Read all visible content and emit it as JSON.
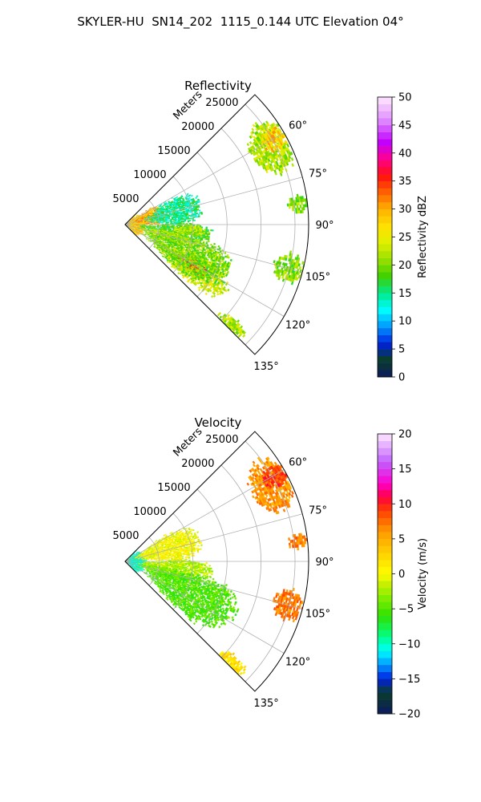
{
  "figure": {
    "title": "SKYLER-HU  SN14_202  1115_0.144 UTC Elevation 04°"
  },
  "chart_data": [
    {
      "type": "heatmap",
      "subtype": "polar-sector",
      "title": "Reflectivity",
      "radial_axis_label": "Meters",
      "radial_range": [
        0,
        27000
      ],
      "radial_ticks": [
        5000,
        10000,
        15000,
        20000,
        25000
      ],
      "radial_tick_labels": [
        "5000",
        "10000",
        "15000",
        "20000",
        "25000"
      ],
      "azimuth_range_deg": [
        45,
        135
      ],
      "azimuth_ticks_deg": [
        60,
        75,
        90,
        105,
        120,
        135
      ],
      "azimuth_tick_labels": [
        "60°",
        "75°",
        "90°",
        "105°",
        "120°",
        "135°"
      ],
      "grid": true,
      "colorbar": {
        "label": "Reflectivity dBZ",
        "range": [
          0,
          50
        ],
        "ticks": [
          0,
          5,
          10,
          15,
          20,
          25,
          30,
          35,
          40,
          45,
          50
        ],
        "tick_labels": [
          "0",
          "5",
          "10",
          "15",
          "20",
          "25",
          "30",
          "35",
          "40",
          "45",
          "50"
        ],
        "placement": "right"
      },
      "echo_regions": [
        {
          "az": [
            46,
            137
          ],
          "r": [
            0,
            3000
          ],
          "value": 28
        },
        {
          "az": [
            56,
            90
          ],
          "r": [
            1500,
            6000
          ],
          "value": 30
        },
        {
          "az": [
            60,
            90
          ],
          "r": [
            3000,
            11500
          ],
          "value": 15
        },
        {
          "az": [
            88,
            104
          ],
          "r": [
            2000,
            13000
          ],
          "value": 18
        },
        {
          "az": [
            90,
            100
          ],
          "r": [
            7000,
            12000
          ],
          "value": 22
        },
        {
          "az": [
            98,
            112
          ],
          "r": [
            2000,
            9500
          ],
          "value": 22
        },
        {
          "az": [
            112,
            132
          ],
          "r": [
            5000,
            18000
          ],
          "value": 24
        },
        {
          "az": [
            116,
            126
          ],
          "r": [
            9000,
            14000
          ],
          "value": 35
        },
        {
          "az": [
            100,
            130
          ],
          "r": [
            3000,
            17000
          ],
          "value": 20
        },
        {
          "az": [
            52,
            72
          ],
          "r": [
            21000,
            27000
          ],
          "value": 22
        },
        {
          "az": [
            56,
            64
          ],
          "r": [
            23000,
            27000
          ],
          "value": 28
        },
        {
          "az": [
            80,
            86
          ],
          "r": [
            24000,
            27000
          ],
          "value": 20
        },
        {
          "az": [
            99,
            110
          ],
          "r": [
            22500,
            27000
          ],
          "value": 20
        },
        {
          "az": [
            130,
            136
          ],
          "r": [
            19000,
            24000
          ],
          "value": 22
        }
      ]
    },
    {
      "type": "heatmap",
      "subtype": "polar-sector",
      "title": "Velocity",
      "radial_axis_label": "Meters",
      "radial_range": [
        0,
        27000
      ],
      "radial_ticks": [
        5000,
        10000,
        15000,
        20000,
        25000
      ],
      "radial_tick_labels": [
        "5000",
        "10000",
        "15000",
        "20000",
        "25000"
      ],
      "azimuth_range_deg": [
        45,
        135
      ],
      "azimuth_ticks_deg": [
        60,
        75,
        90,
        105,
        120,
        135
      ],
      "azimuth_tick_labels": [
        "60°",
        "75°",
        "90°",
        "105°",
        "120°",
        "135°"
      ],
      "grid": true,
      "colorbar": {
        "label": "Velocity (m/s)",
        "range": [
          -20,
          20
        ],
        "ticks": [
          -20,
          -15,
          -10,
          -5,
          0,
          5,
          10,
          15,
          20
        ],
        "tick_labels": [
          "−20",
          "−15",
          "−10",
          "−5",
          "0",
          "5",
          "10",
          "15",
          "20"
        ],
        "placement": "right"
      },
      "echo_regions": [
        {
          "az": [
            46,
            137
          ],
          "r": [
            0,
            3000
          ],
          "value": -10
        },
        {
          "az": [
            56,
            90
          ],
          "r": [
            1500,
            11500
          ],
          "value": 0
        },
        {
          "az": [
            88,
            104
          ],
          "r": [
            2000,
            13000
          ],
          "value": -2
        },
        {
          "az": [
            98,
            112
          ],
          "r": [
            2000,
            9500
          ],
          "value": -4
        },
        {
          "az": [
            100,
            132
          ],
          "r": [
            3000,
            18000
          ],
          "value": -5
        },
        {
          "az": [
            52,
            72
          ],
          "r": [
            21000,
            27000
          ],
          "value": 6
        },
        {
          "az": [
            56,
            64
          ],
          "r": [
            23000,
            27000
          ],
          "value": 9
        },
        {
          "az": [
            80,
            86
          ],
          "r": [
            24000,
            27000
          ],
          "value": 7
        },
        {
          "az": [
            99,
            110
          ],
          "r": [
            22500,
            27000
          ],
          "value": 7
        },
        {
          "az": [
            130,
            136
          ],
          "r": [
            19000,
            24000
          ],
          "value": 2
        }
      ]
    }
  ]
}
